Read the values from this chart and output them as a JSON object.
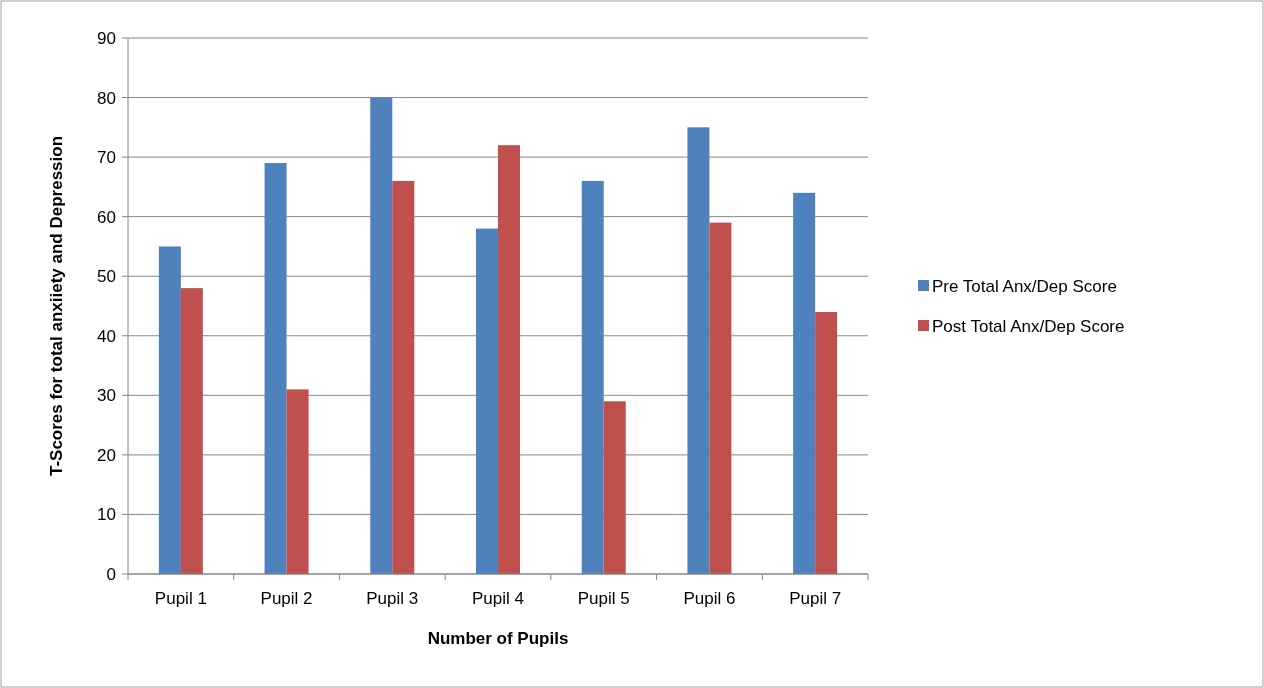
{
  "chart_data": {
    "type": "bar",
    "xlabel": "Number of Pupils",
    "ylabel": "T-Scores for total anxiiety and Depression",
    "categories": [
      "Pupil 1",
      "Pupil 2",
      "Pupil 3",
      "Pupil 4",
      "Pupil 5",
      "Pupil 6",
      "Pupil 7"
    ],
    "series": [
      {
        "name": "Pre Total Anx/Dep Score",
        "color": "#4f81bd",
        "values": [
          55,
          69,
          80,
          58,
          66,
          75,
          64
        ]
      },
      {
        "name": "Post Total Anx/Dep Score",
        "color": "#c0504d",
        "values": [
          48,
          31,
          66,
          72,
          29,
          59,
          44
        ]
      }
    ],
    "ylim": [
      0,
      90
    ],
    "yticks": [
      0,
      10,
      20,
      30,
      40,
      50,
      60,
      70,
      80,
      90
    ],
    "grid": "y",
    "legend": "right"
  }
}
